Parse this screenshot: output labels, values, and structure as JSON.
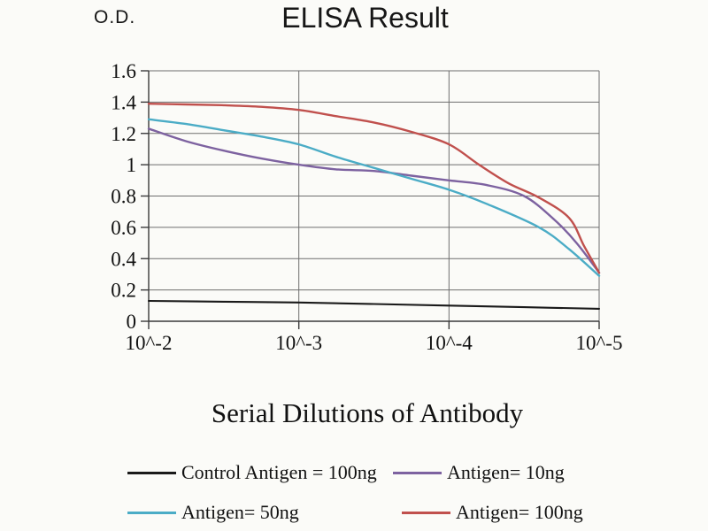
{
  "chart_data": {
    "type": "line",
    "title": "ELISA Result",
    "od_label": "O.D.",
    "xlabel": "Serial Dilutions of Antibody",
    "x_tick_labels": [
      "10^-2",
      "10^-3",
      "10^-4",
      "10^-5"
    ],
    "y_tick_labels": [
      "0",
      "0.2",
      "0.4",
      "0.6",
      "0.8",
      "1",
      "1.2",
      "1.4",
      "1.6"
    ],
    "y_ticks": [
      0,
      0.2,
      0.4,
      0.6,
      0.8,
      1,
      1.2,
      1.4,
      1.6
    ],
    "ylim": [
      0,
      1.6
    ],
    "grid": true,
    "legend_position": "bottom",
    "grid_color": "#6e6e6e",
    "axis_color": "#3a3a3a",
    "series": [
      {
        "name": "Control Antigen = 100ng",
        "color": "#1a1a1a",
        "x": [
          0,
          0.5,
          1,
          1.5,
          2,
          2.5,
          3
        ],
        "values": [
          0.13,
          0.125,
          0.12,
          0.11,
          0.1,
          0.09,
          0.08
        ]
      },
      {
        "name": "Antigen= 10ng",
        "color": "#7d62a0",
        "x": [
          0,
          0.25,
          0.5,
          0.75,
          1,
          1.25,
          1.5,
          1.75,
          2,
          2.25,
          2.5,
          2.7,
          2.85,
          3
        ],
        "values": [
          1.23,
          1.15,
          1.09,
          1.04,
          1.0,
          0.97,
          0.96,
          0.93,
          0.9,
          0.87,
          0.8,
          0.65,
          0.5,
          0.31
        ]
      },
      {
        "name": "Antigen= 50ng",
        "color": "#4bacc6",
        "x": [
          0,
          0.25,
          0.5,
          0.75,
          1,
          1.25,
          1.5,
          1.75,
          2,
          2.25,
          2.6,
          2.8,
          3
        ],
        "values": [
          1.29,
          1.26,
          1.22,
          1.18,
          1.13,
          1.05,
          0.98,
          0.91,
          0.84,
          0.75,
          0.6,
          0.46,
          0.29
        ]
      },
      {
        "name": "Antigen= 100ng",
        "color": "#c0504d",
        "x": [
          0,
          0.25,
          0.5,
          0.75,
          1,
          1.25,
          1.5,
          1.75,
          2,
          2.2,
          2.4,
          2.6,
          2.8,
          2.9,
          3
        ],
        "values": [
          1.39,
          1.385,
          1.38,
          1.37,
          1.35,
          1.31,
          1.27,
          1.21,
          1.13,
          1.0,
          0.88,
          0.79,
          0.66,
          0.48,
          0.31
        ]
      }
    ]
  }
}
